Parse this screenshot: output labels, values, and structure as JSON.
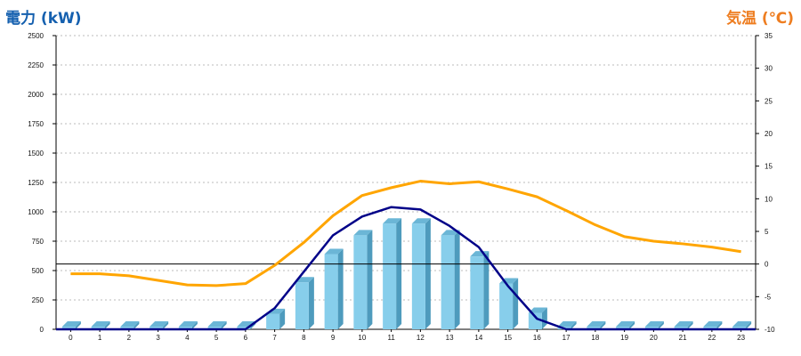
{
  "chart_data": {
    "type": "bar+line",
    "categories": [
      "0",
      "1",
      "2",
      "3",
      "4",
      "5",
      "6",
      "7",
      "8",
      "9",
      "10",
      "11",
      "12",
      "13",
      "14",
      "15",
      "16",
      "17",
      "18",
      "19",
      "20",
      "21",
      "22",
      "23"
    ],
    "ylabel_left": "電力 (kW)",
    "ylabel_right": "気温 (℃)",
    "ylim_left": [
      0,
      2500
    ],
    "ylim_right": [
      -10,
      35
    ],
    "yticks_left": [
      "0",
      "250",
      "500",
      "750",
      "1000",
      "1250",
      "1500",
      "1750",
      "2000",
      "2250",
      "2500"
    ],
    "yticks_right": [
      "-10",
      "-5",
      "0",
      "5",
      "10",
      "15",
      "20",
      "25",
      "30",
      "35"
    ],
    "grid": "horizontal dotted",
    "reference_line": 0,
    "series": [
      {
        "kind": "bar",
        "axis": "left",
        "values": [
          0,
          0,
          0,
          0,
          0,
          0,
          0,
          130,
          400,
          640,
          800,
          900,
          900,
          800,
          620,
          390,
          140,
          0,
          0,
          0,
          0,
          0,
          0,
          0
        ]
      },
      {
        "kind": "line",
        "axis": "left",
        "values": [
          0,
          0,
          0,
          0,
          0,
          0,
          0,
          180,
          490,
          800,
          960,
          1040,
          1020,
          880,
          700,
          370,
          90,
          0,
          0,
          0,
          0,
          0,
          0,
          0
        ]
      },
      {
        "kind": "line",
        "axis": "right",
        "values": [
          -1.5,
          -1.5,
          -1.8,
          -2.5,
          -3.2,
          -3.3,
          -3.0,
          -0.2,
          3.3,
          7.4,
          10.5,
          11.7,
          12.7,
          12.3,
          12.6,
          11.5,
          10.3,
          8.2,
          6.0,
          4.2,
          3.5,
          3.1,
          2.6,
          1.9
        ]
      }
    ],
    "colors": {
      "bar_front": "#87CEEB",
      "bar_side": "#4E9BBD",
      "bar_top": "#6BB6D6",
      "power_line": "#000088",
      "temp_line": "#FFA500",
      "left_title": "#1560AF",
      "right_title": "#EE7D20",
      "grid": "#bbbbbb"
    }
  }
}
